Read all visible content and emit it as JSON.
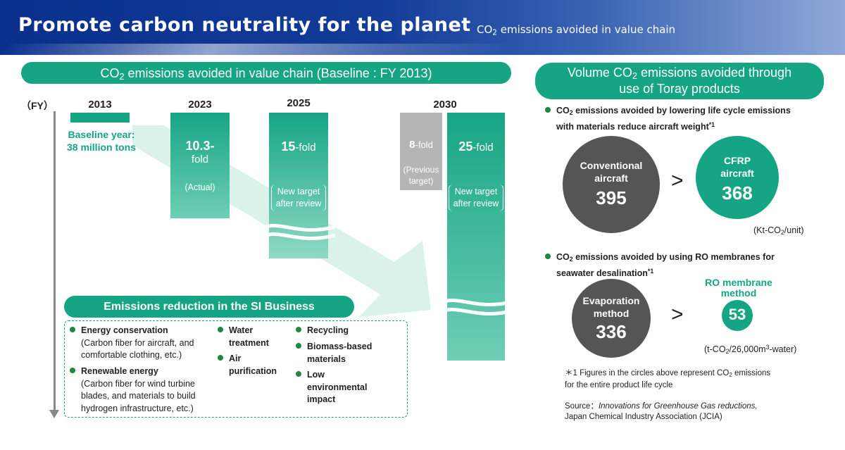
{
  "header": {
    "title": "Promote carbon neutrality for the planet",
    "subtitle_pre": "CO",
    "subtitle_sub": "2",
    "subtitle_post": " emissions avoided in value chain"
  },
  "left": {
    "pill_pre": "CO",
    "pill_sub": "2",
    "pill_post": " emissions avoided in value chain (Baseline : FY 2013)",
    "fy_label": "（FY）",
    "years": [
      "2013",
      "2023",
      "2025",
      "2030"
    ],
    "baseline": {
      "line1": "Baseline year:",
      "line2": "38 million tons"
    },
    "bar_2023": {
      "value": "10.3-",
      "suffix": "fold",
      "note": "(Actual)"
    },
    "bar_2025": {
      "value": "15",
      "suffix": "-fold",
      "bracket1": "New target",
      "bracket2": "after review"
    },
    "bar_2030_prev": {
      "value": "8",
      "suffix": "-fold",
      "note1": "(Previous",
      "note2": "target)"
    },
    "bar_2030": {
      "value": "25",
      "suffix": "-fold",
      "bracket1": "New target",
      "bracket2": "after review"
    },
    "fold_values": {
      "y2023": 10.3,
      "y2025": 15,
      "y2030_previous": 8,
      "y2030": 25
    }
  },
  "si": {
    "title": "Emissions reduction in the SI Business",
    "col1": [
      {
        "head": "Energy conservation",
        "lines": [
          "(Carbon fiber for aircraft, and",
          "comfortable clothing, etc.)"
        ]
      },
      {
        "head": "Renewable energy",
        "lines": [
          "(Carbon fiber for wind turbine",
          "blades, and materials to build",
          "hydrogen infrastructure, etc.)"
        ]
      }
    ],
    "col2": [
      {
        "head1": "Water",
        "head2": "treatment"
      },
      {
        "head1": "Air",
        "head2": "purification"
      }
    ],
    "col3": [
      {
        "head1": "Recycling",
        "head2": ""
      },
      {
        "head1": "Biomass-based",
        "head2": "materials"
      },
      {
        "head1": "Low",
        "head2": "environmental",
        "head3": "impact"
      }
    ]
  },
  "right": {
    "pill_line1_pre": "Volume CO",
    "pill_line1_sub": "2",
    "pill_line1_post": " emissions avoided through",
    "pill_line2": "use of Toray products",
    "aircraft": {
      "bullet_pre": "CO",
      "bullet_sub": "2",
      "bullet_post": " emissions avoided by lowering life cycle emissions",
      "bullet_line2": "with materials reduce aircraft weight",
      "footnote_mark": "*1",
      "conventional_label1": "Conventional",
      "conventional_label2": "aircraft",
      "conventional_value": "395",
      "cfrp_label1": "CFRP",
      "cfrp_label2": "aircraft",
      "cfrp_value": "368",
      "gt": ">",
      "unit_pre": "(Kt-CO",
      "unit_sub": "2",
      "unit_post": "/unit)"
    },
    "ro": {
      "bullet_pre": "CO",
      "bullet_sub": "2",
      "bullet_post": " emissions avoided by using RO membranes for",
      "bullet_line2": "seawater desalination",
      "footnote_mark": "*1",
      "evap_label1": "Evaporation",
      "evap_label2": "method",
      "evap_value": "336",
      "ro_title1": "RO membrane",
      "ro_title2": "method",
      "ro_value": "53",
      "gt": ">",
      "unit_pre": "(t-CO",
      "unit_sub": "2",
      "unit_mid": "/26,000m",
      "unit_sup": "3",
      "unit_post": "-water)"
    },
    "note": {
      "mark": "＊1",
      "line1_pre": " Figures in the circles above represent CO",
      "line1_sub": "2",
      "line1_post": " emissions",
      "line2": "for the entire product life cycle"
    },
    "source": {
      "label": "Source：",
      "title": "Innovations for Greenhouse Gas reductions,",
      "org": "Japan Chemical Industry Association (JCIA)"
    }
  },
  "colors": {
    "brand_blue": "#0a2f8c",
    "accent_green": "#16a584",
    "gray_circle": "#555555",
    "prev_target_gray": "#b5b5b5",
    "bullet_green": "#1b8a3a"
  }
}
